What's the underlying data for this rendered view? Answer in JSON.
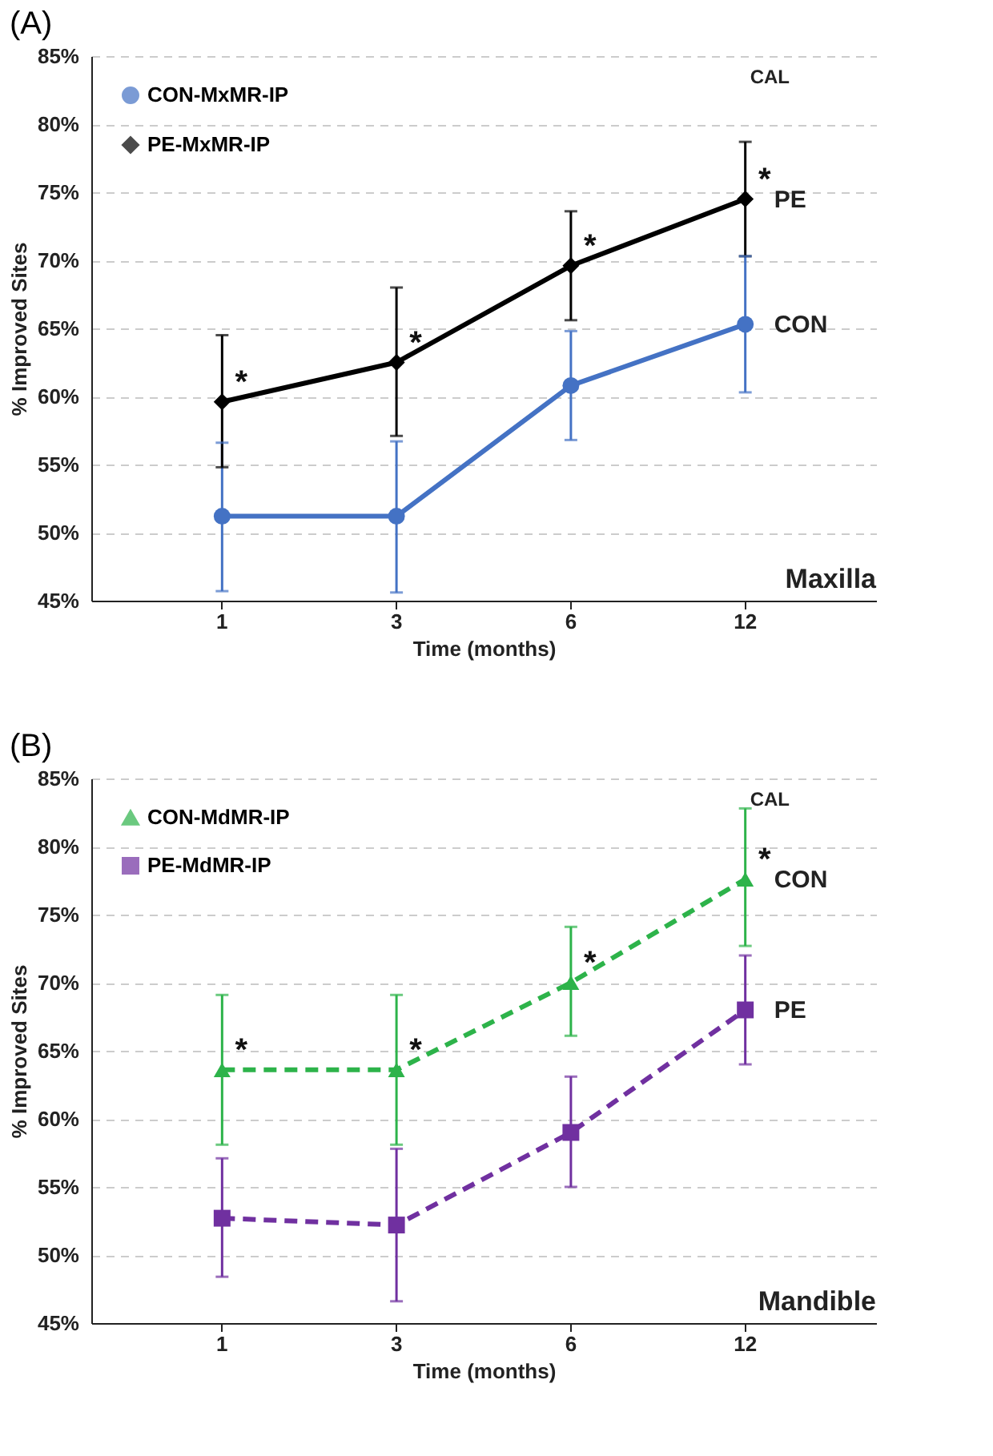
{
  "chart_data": [
    {
      "type": "line",
      "title": "(A)",
      "xlabel": "Time (months)",
      "ylabel": "% Improved Sites",
      "categories": [
        "1",
        "3",
        "6",
        "12"
      ],
      "series": [
        {
          "name": "CON-MxMR-IP",
          "color": "#4472c4",
          "marker": "circle",
          "values": [
            51.2,
            51.2,
            60.8,
            65.3
          ],
          "errors": [
            [
              45.7,
              56.6
            ],
            [
              45.6,
              56.7
            ],
            [
              56.8,
              64.8
            ],
            [
              60.3,
              70.3
            ]
          ]
        },
        {
          "name": "PE-MxMR-IP",
          "color": "#000000",
          "marker": "diamond",
          "values": [
            59.6,
            62.5,
            69.6,
            74.5
          ],
          "errors": [
            [
              54.8,
              64.5
            ],
            [
              57.1,
              68.0
            ],
            [
              65.6,
              73.6
            ],
            [
              70.3,
              78.7
            ]
          ]
        }
      ],
      "ylim": [
        45,
        85
      ],
      "yticks": [
        {
          "value": 45,
          "label": "45%"
        },
        {
          "value": 50,
          "label": "50%"
        },
        {
          "value": 55,
          "label": "55%"
        },
        {
          "value": 60,
          "label": "60%"
        },
        {
          "value": 65,
          "label": "65%"
        },
        {
          "value": 70,
          "label": "70%"
        },
        {
          "value": 75,
          "label": "75%"
        },
        {
          "value": 80,
          "label": "80%"
        },
        {
          "value": 85,
          "label": "85%"
        }
      ],
      "grid": "y",
      "legend": "top left",
      "line_style": "solid",
      "annotations": [
        "CAL",
        "Maxilla",
        {
          "text": "*",
          "x": "1",
          "y": 59.6
        },
        {
          "text": "*",
          "x": "3",
          "y": 62.5
        },
        {
          "text": "*",
          "x": "6",
          "y": 69.6
        },
        {
          "text": "*",
          "x": "12",
          "y": 74.5
        },
        {
          "text": "PE",
          "x": "12",
          "y": 74.5
        },
        {
          "text": "CON",
          "x": "12",
          "y": 65.3
        }
      ]
    },
    {
      "type": "line",
      "title": "(B)",
      "xlabel": "Time (months)",
      "ylabel": "% Improved Sites",
      "categories": [
        "1",
        "3",
        "6",
        "12"
      ],
      "series": [
        {
          "name": "CON-MdMR-IP",
          "color": "#2db34a",
          "marker": "triangle",
          "values": [
            63.6,
            63.6,
            70.0,
            77.6
          ],
          "errors": [
            [
              58.1,
              69.1
            ],
            [
              58.1,
              69.1
            ],
            [
              66.1,
              74.1
            ],
            [
              72.7,
              82.8
            ]
          ]
        },
        {
          "name": "PE-MdMR-IP",
          "color": "#7030a0",
          "marker": "square",
          "values": [
            52.7,
            52.2,
            59.0,
            68.0
          ],
          "errors": [
            [
              48.4,
              57.1
            ],
            [
              46.6,
              57.8
            ],
            [
              55.0,
              63.1
            ],
            [
              64.0,
              72.0
            ]
          ]
        }
      ],
      "ylim": [
        45,
        85
      ],
      "yticks": [
        {
          "value": 45,
          "label": "45%"
        },
        {
          "value": 50,
          "label": "50%"
        },
        {
          "value": 55,
          "label": "55%"
        },
        {
          "value": 60,
          "label": "60%"
        },
        {
          "value": 65,
          "label": "65%"
        },
        {
          "value": 70,
          "label": "70%"
        },
        {
          "value": 75,
          "label": "75%"
        },
        {
          "value": 80,
          "label": "80%"
        },
        {
          "value": 85,
          "label": "85%"
        }
      ],
      "grid": "y",
      "legend": "top left",
      "line_style": "dashed",
      "annotations": [
        "CAL",
        "Mandible",
        {
          "text": "*",
          "x": "1",
          "y": 63.6
        },
        {
          "text": "*",
          "x": "3",
          "y": 63.6
        },
        {
          "text": "*",
          "x": "6",
          "y": 70.0
        },
        {
          "text": "*",
          "x": "12",
          "y": 77.6
        },
        {
          "text": "CON",
          "x": "12",
          "y": 77.6
        },
        {
          "text": "PE",
          "x": "12",
          "y": 68.0
        }
      ]
    }
  ]
}
